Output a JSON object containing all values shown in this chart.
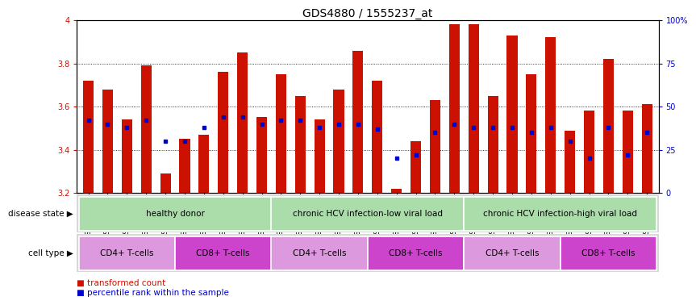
{
  "title": "GDS4880 / 1555237_at",
  "samples": [
    "GSM1210739",
    "GSM1210740",
    "GSM1210741",
    "GSM1210742",
    "GSM1210743",
    "GSM1210754",
    "GSM1210755",
    "GSM1210756",
    "GSM1210757",
    "GSM1210758",
    "GSM1210745",
    "GSM1210750",
    "GSM1210751",
    "GSM1210752",
    "GSM1210753",
    "GSM1210760",
    "GSM1210765",
    "GSM1210766",
    "GSM1210767",
    "GSM1210768",
    "GSM1210744",
    "GSM1210746",
    "GSM1210747",
    "GSM1210748",
    "GSM1210749",
    "GSM1210759",
    "GSM1210761",
    "GSM1210762",
    "GSM1210763",
    "GSM1210764"
  ],
  "transformed_count": [
    3.72,
    3.68,
    3.54,
    3.79,
    3.29,
    3.45,
    3.47,
    3.76,
    3.85,
    3.55,
    3.75,
    3.65,
    3.54,
    3.68,
    3.86,
    3.72,
    3.22,
    3.44,
    3.63,
    3.98,
    3.98,
    3.65,
    3.93,
    3.75,
    3.92,
    3.49,
    3.58,
    3.82,
    3.58,
    3.61
  ],
  "percentile_rank": [
    42,
    40,
    38,
    42,
    30,
    30,
    38,
    44,
    44,
    40,
    42,
    42,
    38,
    40,
    40,
    37,
    20,
    22,
    35,
    40,
    38,
    38,
    38,
    35,
    38,
    30,
    20,
    38,
    22,
    35
  ],
  "ymin": 3.2,
  "ymax": 4.0,
  "yticks": [
    3.2,
    3.4,
    3.6,
    3.8,
    4.0
  ],
  "ytick_labels": [
    "3.2",
    "3.4",
    "3.6",
    "3.8",
    "4"
  ],
  "right_yticks": [
    0,
    25,
    50,
    75,
    100
  ],
  "right_ytick_labels": [
    "0",
    "25",
    "50",
    "75",
    "100%"
  ],
  "bar_color": "#CC1100",
  "dot_color": "#0000CC",
  "background_color": "#FFFFFF",
  "disease_state_color": "#AADDAA",
  "cell_type_colors": [
    "#DD99DD",
    "#CC44CC"
  ],
  "disease_state_groups": [
    {
      "label": "healthy donor",
      "start": 0,
      "end": 9
    },
    {
      "label": "chronic HCV infection-low viral load",
      "start": 10,
      "end": 19
    },
    {
      "label": "chronic HCV infection-high viral load",
      "start": 20,
      "end": 29
    }
  ],
  "cell_type_groups": [
    {
      "label": "CD4+ T-cells",
      "start": 0,
      "end": 4,
      "type": "cd4"
    },
    {
      "label": "CD8+ T-cells",
      "start": 5,
      "end": 9,
      "type": "cd8"
    },
    {
      "label": "CD4+ T-cells",
      "start": 10,
      "end": 14,
      "type": "cd4"
    },
    {
      "label": "CD8+ T-cells",
      "start": 15,
      "end": 19,
      "type": "cd8"
    },
    {
      "label": "CD4+ T-cells",
      "start": 20,
      "end": 24,
      "type": "cd4"
    },
    {
      "label": "CD8+ T-cells",
      "start": 25,
      "end": 29,
      "type": "cd8"
    }
  ],
  "bar_width": 0.55,
  "title_fontsize": 10,
  "tick_fontsize": 7,
  "sample_fontsize": 5.8,
  "group_label_fontsize": 7.5,
  "legend_fontsize": 7.5,
  "left_label_color": "#CC1100",
  "right_label_color": "#0000CC"
}
